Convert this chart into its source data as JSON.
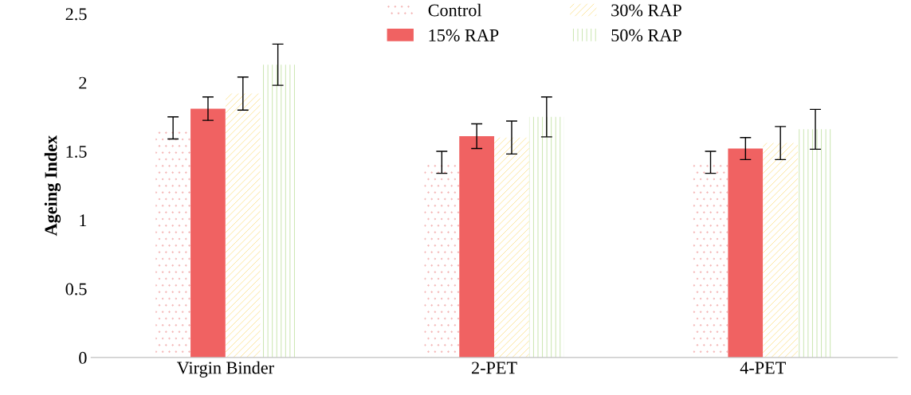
{
  "chart_data": {
    "type": "bar",
    "ylabel": "Ageing Index",
    "categories": [
      "Virgin Binder",
      "2-PET",
      "4-PET"
    ],
    "series": [
      {
        "name": "Control",
        "color": "#f4b4b4",
        "values": [
          1.67,
          1.42,
          1.42
        ],
        "errors": [
          0.08,
          0.08,
          0.08
        ]
      },
      {
        "name": "15% RAP",
        "color": "#f06262",
        "values": [
          1.81,
          1.61,
          1.52
        ],
        "errors": [
          0.085,
          0.09,
          0.08
        ]
      },
      {
        "name": "30% RAP",
        "color": "#fbe08a",
        "values": [
          1.92,
          1.6,
          1.56
        ],
        "errors": [
          0.12,
          0.12,
          0.12
        ]
      },
      {
        "name": "50% RAP",
        "color": "#bfe0a0",
        "values": [
          2.13,
          1.75,
          1.66
        ],
        "errors": [
          0.15,
          0.145,
          0.145
        ]
      }
    ],
    "ylim": [
      0,
      2.5
    ],
    "yticks": [
      0,
      0.5,
      1,
      1.5,
      2,
      2.5
    ],
    "grid": false,
    "legend": "top"
  }
}
